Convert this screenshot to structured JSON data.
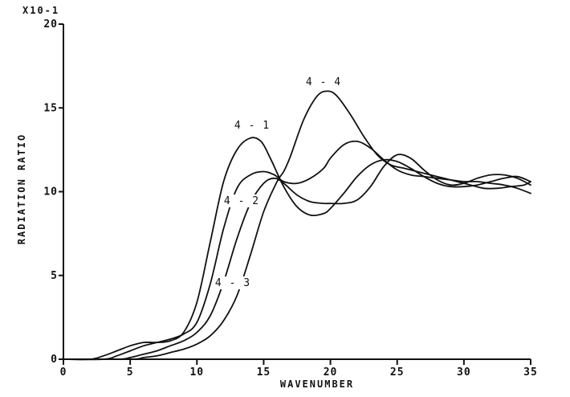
{
  "chart_data": {
    "type": "line",
    "title": "",
    "xlabel": "WAVENUMBER",
    "ylabel": "RADIATION RATIO",
    "y_multiplier": "X10-1",
    "xlim": [
      0,
      35
    ],
    "ylim": [
      0,
      20
    ],
    "x_ticks": [
      0,
      5,
      10,
      15,
      20,
      25,
      30,
      35
    ],
    "y_ticks": [
      0,
      5,
      10,
      15,
      20
    ],
    "x_tick_labels": [
      "0",
      "5",
      "10",
      "15",
      "20",
      "25",
      "30",
      "35"
    ],
    "y_tick_labels": [
      "0",
      "5",
      "10",
      "15",
      "20"
    ],
    "grid": false,
    "legend": "none",
    "series": [
      {
        "name": "4-1",
        "x": [
          0,
          2,
          3,
          4,
          5,
          6,
          7,
          8,
          9,
          10,
          11,
          12,
          13,
          14,
          14.8,
          15.5,
          16.5,
          17.5,
          18.5,
          19.5,
          20,
          21,
          22,
          23,
          24,
          25,
          26,
          27,
          28,
          29,
          30,
          31,
          32,
          33,
          34,
          35
        ],
        "y": [
          0,
          0,
          0.2,
          0.5,
          0.8,
          1.0,
          1.0,
          1.1,
          1.6,
          3.4,
          7.0,
          10.6,
          12.5,
          13.2,
          13.0,
          12.0,
          10.3,
          9.1,
          8.6,
          8.7,
          9.0,
          9.9,
          10.9,
          11.6,
          11.9,
          11.8,
          11.4,
          10.9,
          10.5,
          10.3,
          10.3,
          10.4,
          10.6,
          10.8,
          10.9,
          10.6
        ]
      },
      {
        "name": "4-2",
        "x": [
          0,
          3,
          4,
          5,
          6,
          7,
          8,
          9,
          10,
          11,
          12,
          13,
          14,
          15,
          15.8,
          16.5,
          17.5,
          18.5,
          19.5,
          20,
          21,
          22,
          23,
          24,
          25,
          26,
          27,
          28,
          29,
          30,
          31,
          32,
          33,
          34,
          35
        ],
        "y": [
          0,
          0,
          0.2,
          0.5,
          0.8,
          1.0,
          1.2,
          1.5,
          2.2,
          4.5,
          7.8,
          10.2,
          11.0,
          11.2,
          11.0,
          10.6,
          10.5,
          10.8,
          11.4,
          12.0,
          12.8,
          13.0,
          12.6,
          11.9,
          11.3,
          11.0,
          10.9,
          10.8,
          10.7,
          10.6,
          10.6,
          10.5,
          10.4,
          10.2,
          9.9
        ]
      },
      {
        "name": "4-3",
        "x": [
          0,
          4,
          5,
          6,
          7,
          8,
          9,
          10,
          11,
          12,
          13,
          14,
          15,
          15.8,
          16.5,
          17.5,
          18.5,
          19.5,
          20,
          21,
          22,
          23,
          24,
          25,
          26,
          27,
          28,
          29,
          30,
          31,
          32,
          33,
          34,
          35
        ],
        "y": [
          0,
          0,
          0.1,
          0.3,
          0.5,
          0.8,
          1.1,
          1.6,
          2.6,
          4.6,
          7.2,
          9.3,
          10.5,
          10.8,
          10.5,
          9.8,
          9.4,
          9.3,
          9.3,
          9.3,
          9.5,
          10.3,
          11.5,
          12.2,
          12.0,
          11.3,
          10.7,
          10.4,
          10.5,
          10.8,
          11.0,
          11.0,
          10.8,
          10.4
        ]
      },
      {
        "name": "4-4",
        "x": [
          0,
          5,
          6,
          7,
          8,
          9,
          10,
          11,
          12,
          13,
          14,
          15,
          16,
          16.5,
          17,
          18,
          19,
          19.8,
          20.5,
          21.5,
          22.5,
          23.5,
          24.5,
          25.5,
          26.5,
          27.5,
          28.5,
          29.5,
          30.5,
          31.5,
          32.5,
          33.5,
          34.5,
          35
        ],
        "y": [
          0,
          0,
          0.1,
          0.2,
          0.4,
          0.6,
          0.9,
          1.4,
          2.3,
          3.8,
          6.2,
          8.8,
          10.6,
          11.2,
          12.1,
          14.3,
          15.7,
          16.0,
          15.7,
          14.6,
          13.3,
          12.2,
          11.6,
          11.4,
          11.2,
          11.0,
          10.8,
          10.6,
          10.4,
          10.2,
          10.2,
          10.3,
          10.4,
          10.6
        ]
      }
    ],
    "annotations": [
      {
        "text": "4 - 1",
        "series": "4-1"
      },
      {
        "text": "4 - 2",
        "series": "4-2"
      },
      {
        "text": "4 - 3",
        "series": "4-3"
      },
      {
        "text": "4 - 4",
        "series": "4-4"
      }
    ]
  }
}
